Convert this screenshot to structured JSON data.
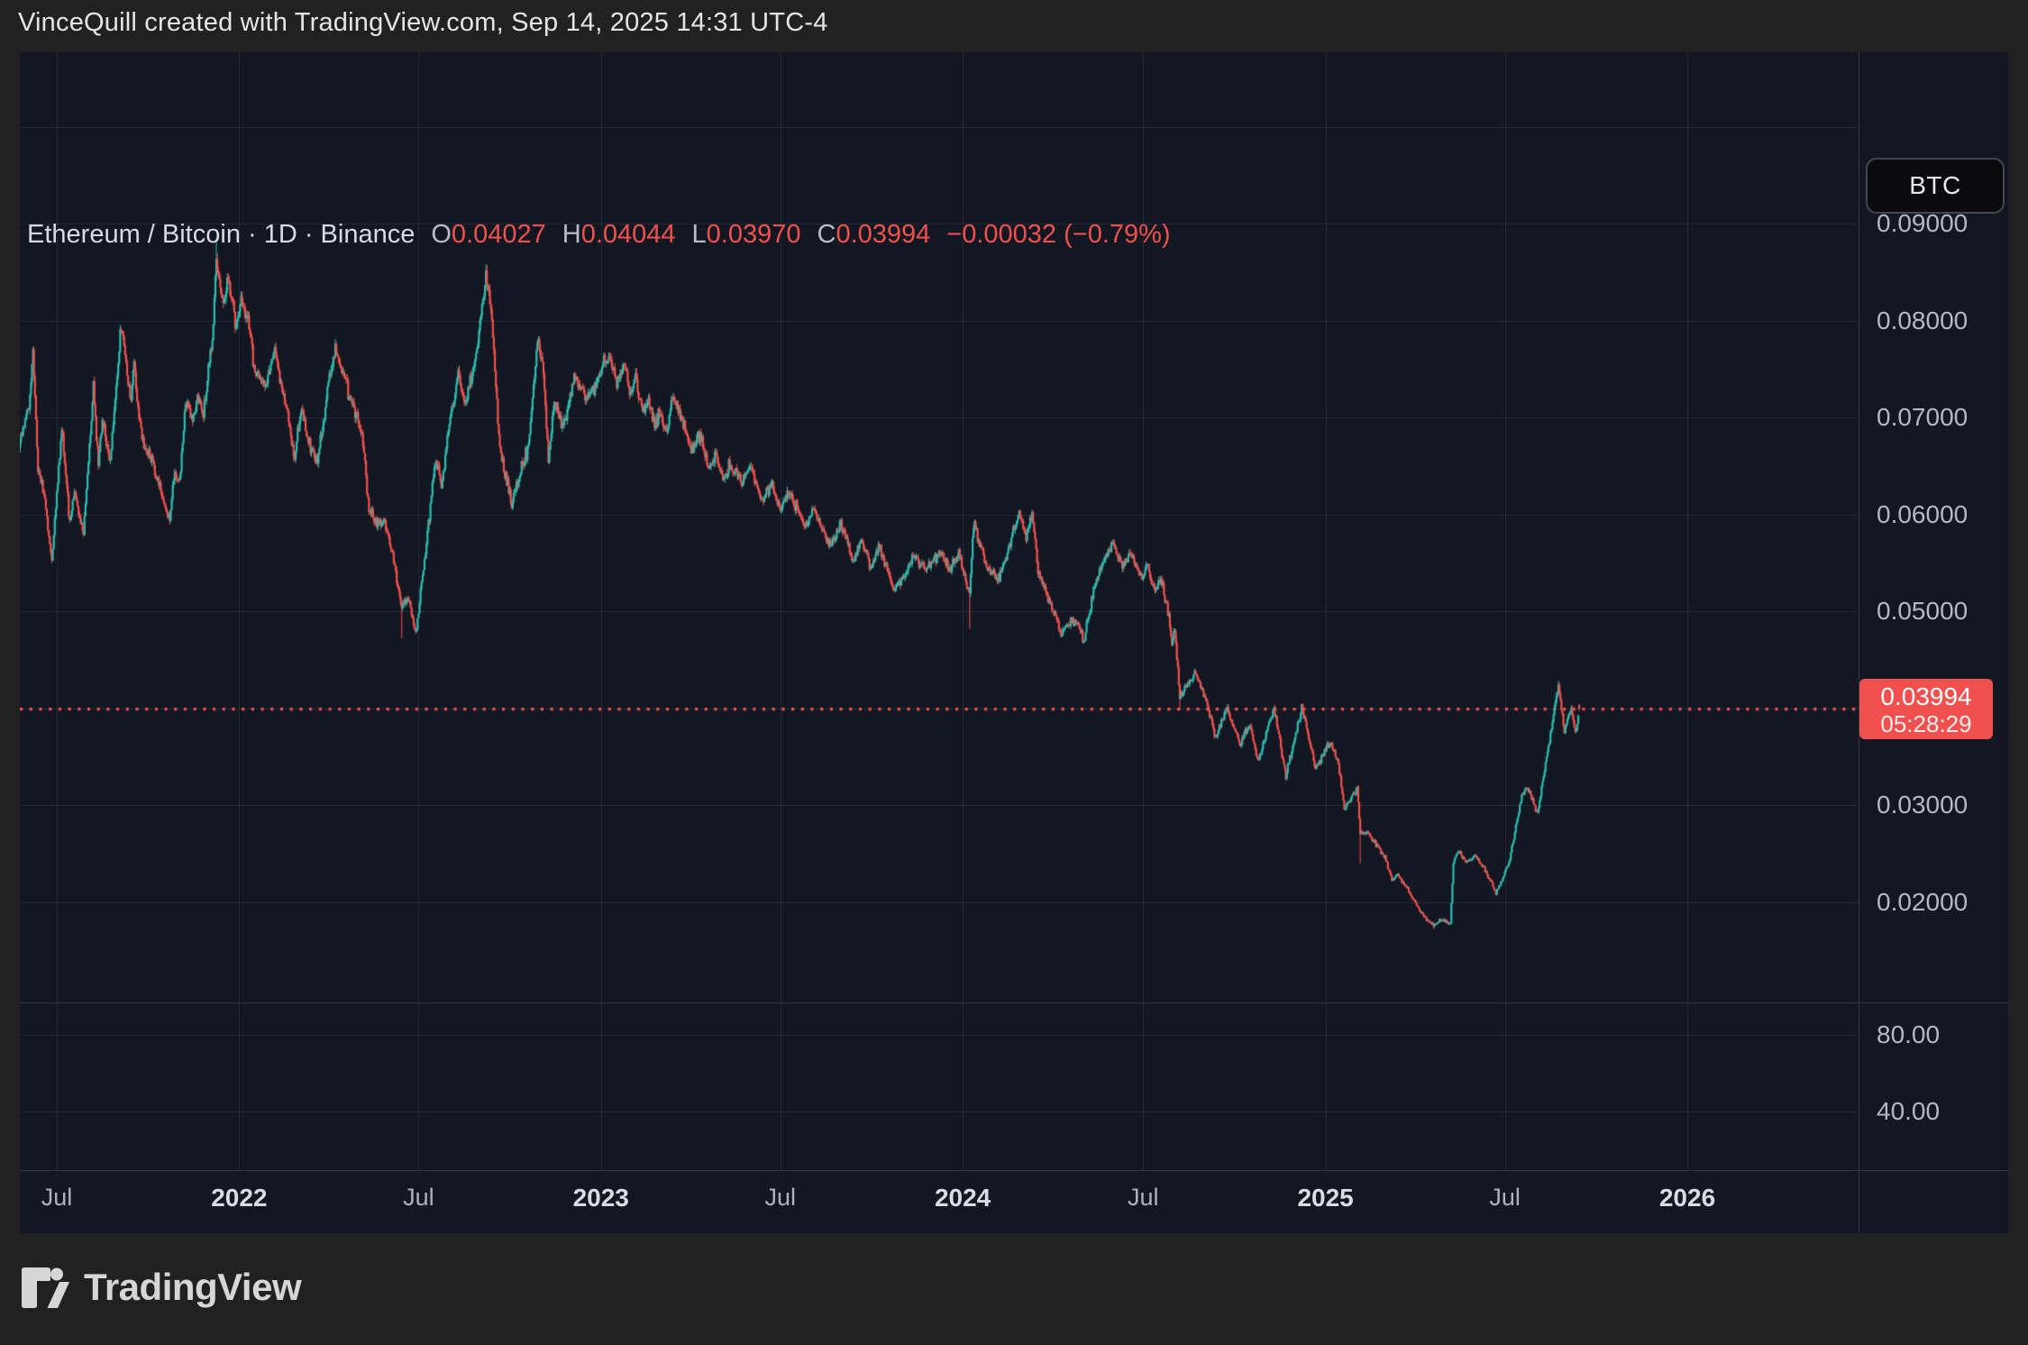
{
  "attribution": "VinceQuill created with TradingView.com, Sep 14, 2025 14:31 UTC-4",
  "legend": {
    "title": "Ethereum / Bitcoin · 1D · Binance",
    "ohlc": [
      {
        "key": "O",
        "value": "0.04027"
      },
      {
        "key": "H",
        "value": "0.04044"
      },
      {
        "key": "L",
        "value": "0.03970"
      },
      {
        "key": "C",
        "value": "0.03994"
      }
    ],
    "change": "−0.00032 (−0.79%)"
  },
  "price_scale": {
    "currency_button": "BTC",
    "ticks": [
      {
        "value": 0.09,
        "label": "0.09000"
      },
      {
        "value": 0.08,
        "label": "0.08000"
      },
      {
        "value": 0.07,
        "label": "0.07000"
      },
      {
        "value": 0.06,
        "label": "0.06000"
      },
      {
        "value": 0.05,
        "label": "0.05000"
      },
      {
        "value": 0.03,
        "label": "0.03000"
      },
      {
        "value": 0.02,
        "label": "0.02000"
      }
    ],
    "lower_pane_ticks": [
      {
        "label": "80.00"
      },
      {
        "label": "40.00"
      }
    ],
    "price_label": {
      "price": "0.03994",
      "countdown": "05:28:29"
    }
  },
  "time_scale": {
    "labels": [
      {
        "date": "2021-07-01",
        "text": "Jul",
        "major": false
      },
      {
        "date": "2022-01-01",
        "text": "2022",
        "major": true
      },
      {
        "date": "2022-07-01",
        "text": "Jul",
        "major": false
      },
      {
        "date": "2023-01-01",
        "text": "2023",
        "major": true
      },
      {
        "date": "2023-07-01",
        "text": "Jul",
        "major": false
      },
      {
        "date": "2024-01-01",
        "text": "2024",
        "major": true
      },
      {
        "date": "2024-07-01",
        "text": "Jul",
        "major": false
      },
      {
        "date": "2025-01-01",
        "text": "2025",
        "major": true
      },
      {
        "date": "2025-07-01",
        "text": "Jul",
        "major": false
      },
      {
        "date": "2026-01-01",
        "text": "2026",
        "major": true
      }
    ]
  },
  "logo_text": "TradingView",
  "colors": {
    "up": "#2ebdb0",
    "down": "#f0524f",
    "accent_red": "#f0514f",
    "chart_bg": "#131722",
    "outer_bg": "#212121",
    "grid": "rgba(240,243,250,0.075)"
  },
  "chart_data": {
    "type": "candlestick",
    "title": "Ethereum / Bitcoin",
    "interval": "1D",
    "exchange": "Binance",
    "quote_unit": "BTC",
    "current_price": 0.03994,
    "current_price_countdown": "05:28:29",
    "last_candle": {
      "date": "2025-09-14",
      "open": 0.04027,
      "high": 0.04044,
      "low": 0.0397,
      "close": 0.03994
    },
    "y_axis": {
      "labeled_ticks": [
        0.09,
        0.08,
        0.07,
        0.06,
        0.05,
        0.03,
        0.02
      ],
      "grid_values": [
        0.1,
        0.09,
        0.08,
        0.07,
        0.06,
        0.05,
        0.04,
        0.03,
        0.02
      ],
      "visible_range": [
        0.01,
        0.1075
      ]
    },
    "lower_pane": {
      "labeled_ticks": [
        80.0,
        40.0
      ],
      "series_visible": false
    },
    "x_axis": {
      "start": "2021-05-20",
      "end": "2026-06-01"
    },
    "keypoints": [
      [
        "2021-05-20",
        0.066
      ],
      [
        "2021-05-28",
        0.0685
      ],
      [
        "2021-06-03",
        0.0712
      ],
      [
        "2021-06-07",
        0.0768
      ],
      [
        "2021-06-12",
        0.0648
      ],
      [
        "2021-06-18",
        0.062
      ],
      [
        "2021-06-26",
        0.0552
      ],
      [
        "2021-07-06",
        0.0688
      ],
      [
        "2021-07-14",
        0.0592
      ],
      [
        "2021-07-19",
        0.0622
      ],
      [
        "2021-07-28",
        0.0578
      ],
      [
        "2021-08-07",
        0.073
      ],
      [
        "2021-08-12",
        0.0652
      ],
      [
        "2021-08-16",
        0.07
      ],
      [
        "2021-08-24",
        0.0655
      ],
      [
        "2021-09-04",
        0.0795
      ],
      [
        "2021-09-14",
        0.0718
      ],
      [
        "2021-09-17",
        0.0757
      ],
      [
        "2021-09-22",
        0.07
      ],
      [
        "2021-09-28",
        0.0668
      ],
      [
        "2021-10-02",
        0.066
      ],
      [
        "2021-10-10",
        0.064
      ],
      [
        "2021-10-18",
        0.0607
      ],
      [
        "2021-10-23",
        0.0594
      ],
      [
        "2021-10-28",
        0.0645
      ],
      [
        "2021-11-02",
        0.0633
      ],
      [
        "2021-11-08",
        0.0716
      ],
      [
        "2021-11-15",
        0.07
      ],
      [
        "2021-11-21",
        0.0722
      ],
      [
        "2021-11-26",
        0.0704
      ],
      [
        "2021-12-05",
        0.0781
      ],
      [
        "2021-12-09",
        0.0862
      ],
      [
        "2021-12-16",
        0.0812
      ],
      [
        "2021-12-21",
        0.0845
      ],
      [
        "2021-12-29",
        0.079
      ],
      [
        "2022-01-03",
        0.0822
      ],
      [
        "2022-01-10",
        0.08
      ],
      [
        "2022-01-17",
        0.0745
      ],
      [
        "2022-01-27",
        0.0734
      ],
      [
        "2022-02-06",
        0.0768
      ],
      [
        "2022-02-13",
        0.0729
      ],
      [
        "2022-02-18",
        0.071
      ],
      [
        "2022-02-25",
        0.0658
      ],
      [
        "2022-03-05",
        0.0708
      ],
      [
        "2022-03-13",
        0.0672
      ],
      [
        "2022-03-21",
        0.0653
      ],
      [
        "2022-03-31",
        0.0728
      ],
      [
        "2022-04-08",
        0.077
      ],
      [
        "2022-04-16",
        0.0745
      ],
      [
        "2022-04-25",
        0.0712
      ],
      [
        "2022-05-05",
        0.0685
      ],
      [
        "2022-05-12",
        0.0605
      ],
      [
        "2022-05-20",
        0.0588
      ],
      [
        "2022-05-27",
        0.0592
      ],
      [
        "2022-06-05",
        0.056
      ],
      [
        "2022-06-14",
        0.0502
      ],
      [
        "2022-06-20",
        0.0515
      ],
      [
        "2022-06-28",
        0.0478
      ],
      [
        "2022-07-08",
        0.056
      ],
      [
        "2022-07-18",
        0.0655
      ],
      [
        "2022-07-24",
        0.063
      ],
      [
        "2022-08-02",
        0.07
      ],
      [
        "2022-08-10",
        0.0742
      ],
      [
        "2022-08-17",
        0.0712
      ],
      [
        "2022-08-27",
        0.076
      ],
      [
        "2022-09-07",
        0.085
      ],
      [
        "2022-09-13",
        0.0802
      ],
      [
        "2022-09-21",
        0.0668
      ],
      [
        "2022-10-03",
        0.0612
      ],
      [
        "2022-10-12",
        0.0645
      ],
      [
        "2022-10-20",
        0.067
      ],
      [
        "2022-10-29",
        0.0782
      ],
      [
        "2022-11-04",
        0.0745
      ],
      [
        "2022-11-09",
        0.0655
      ],
      [
        "2022-11-15",
        0.0718
      ],
      [
        "2022-11-24",
        0.069
      ],
      [
        "2022-12-05",
        0.0742
      ],
      [
        "2022-12-20",
        0.0718
      ],
      [
        "2023-01-08",
        0.0766
      ],
      [
        "2023-01-17",
        0.0732
      ],
      [
        "2023-01-24",
        0.0755
      ],
      [
        "2023-02-01",
        0.0722
      ],
      [
        "2023-02-05",
        0.074
      ],
      [
        "2023-02-12",
        0.0705
      ],
      [
        "2023-02-17",
        0.0718
      ],
      [
        "2023-02-24",
        0.0693
      ],
      [
        "2023-03-02",
        0.0706
      ],
      [
        "2023-03-08",
        0.0683
      ],
      [
        "2023-03-14",
        0.072
      ],
      [
        "2023-03-24",
        0.07
      ],
      [
        "2023-04-02",
        0.0664
      ],
      [
        "2023-04-11",
        0.0683
      ],
      [
        "2023-04-20",
        0.0648
      ],
      [
        "2023-04-26",
        0.0661
      ],
      [
        "2023-05-05",
        0.0636
      ],
      [
        "2023-05-11",
        0.0652
      ],
      [
        "2023-05-23",
        0.0632
      ],
      [
        "2023-06-01",
        0.0648
      ],
      [
        "2023-06-13",
        0.0614
      ],
      [
        "2023-06-22",
        0.0632
      ],
      [
        "2023-07-01",
        0.0605
      ],
      [
        "2023-07-10",
        0.0623
      ],
      [
        "2023-07-25",
        0.0589
      ],
      [
        "2023-08-03",
        0.0605
      ],
      [
        "2023-08-19",
        0.0567
      ],
      [
        "2023-08-31",
        0.0589
      ],
      [
        "2023-09-12",
        0.0555
      ],
      [
        "2023-09-21",
        0.0571
      ],
      [
        "2023-09-30",
        0.0546
      ],
      [
        "2023-10-09",
        0.0567
      ],
      [
        "2023-10-18",
        0.0537
      ],
      [
        "2023-10-23",
        0.0522
      ],
      [
        "2023-11-02",
        0.0535
      ],
      [
        "2023-11-12",
        0.0558
      ],
      [
        "2023-11-24",
        0.0542
      ],
      [
        "2023-12-08",
        0.056
      ],
      [
        "2023-12-20",
        0.0545
      ],
      [
        "2023-12-28",
        0.056
      ],
      [
        "2024-01-08",
        0.052
      ],
      [
        "2024-01-12",
        0.0592
      ],
      [
        "2024-01-20",
        0.0565
      ],
      [
        "2024-01-25",
        0.0546
      ],
      [
        "2024-02-06",
        0.0532
      ],
      [
        "2024-02-15",
        0.0558
      ],
      [
        "2024-02-26",
        0.0604
      ],
      [
        "2024-03-05",
        0.0577
      ],
      [
        "2024-03-11",
        0.06
      ],
      [
        "2024-03-17",
        0.054
      ],
      [
        "2024-03-28",
        0.0513
      ],
      [
        "2024-04-09",
        0.0477
      ],
      [
        "2024-04-18",
        0.049
      ],
      [
        "2024-04-26",
        0.0487
      ],
      [
        "2024-05-02",
        0.047
      ],
      [
        "2024-05-13",
        0.0526
      ],
      [
        "2024-05-25",
        0.0561
      ],
      [
        "2024-05-31",
        0.057
      ],
      [
        "2024-06-09",
        0.0549
      ],
      [
        "2024-06-18",
        0.0561
      ],
      [
        "2024-06-29",
        0.0534
      ],
      [
        "2024-07-05",
        0.0546
      ],
      [
        "2024-07-13",
        0.0522
      ],
      [
        "2024-07-19",
        0.0534
      ],
      [
        "2024-07-27",
        0.0497
      ],
      [
        "2024-07-30",
        0.0466
      ],
      [
        "2024-08-02",
        0.0481
      ],
      [
        "2024-08-07",
        0.0412
      ],
      [
        "2024-08-22",
        0.0437
      ],
      [
        "2024-09-02",
        0.041
      ],
      [
        "2024-09-12",
        0.0368
      ],
      [
        "2024-09-23",
        0.04
      ],
      [
        "2024-10-07",
        0.0362
      ],
      [
        "2024-10-16",
        0.0384
      ],
      [
        "2024-10-25",
        0.0345
      ],
      [
        "2024-11-10",
        0.0401
      ],
      [
        "2024-11-22",
        0.033
      ],
      [
        "2024-12-08",
        0.04
      ],
      [
        "2024-12-22",
        0.0337
      ],
      [
        "2025-01-05",
        0.0365
      ],
      [
        "2025-01-14",
        0.0343
      ],
      [
        "2025-01-20",
        0.0295
      ],
      [
        "2025-02-02",
        0.0318
      ],
      [
        "2025-02-05",
        0.027
      ],
      [
        "2025-02-12",
        0.0272
      ],
      [
        "2025-02-22",
        0.0258
      ],
      [
        "2025-03-02",
        0.0246
      ],
      [
        "2025-03-09",
        0.0222
      ],
      [
        "2025-03-14",
        0.0228
      ],
      [
        "2025-03-24",
        0.0215
      ],
      [
        "2025-04-05",
        0.0192
      ],
      [
        "2025-04-12",
        0.0183
      ],
      [
        "2025-04-20",
        0.0176
      ],
      [
        "2025-04-28",
        0.0182
      ],
      [
        "2025-05-07",
        0.0177
      ],
      [
        "2025-05-10",
        0.024
      ],
      [
        "2025-05-15",
        0.0253
      ],
      [
        "2025-05-22",
        0.0242
      ],
      [
        "2025-06-01",
        0.0247
      ],
      [
        "2025-06-10",
        0.0235
      ],
      [
        "2025-06-22",
        0.0209
      ],
      [
        "2025-07-05",
        0.024
      ],
      [
        "2025-07-18",
        0.031
      ],
      [
        "2025-07-23",
        0.0319
      ],
      [
        "2025-08-03",
        0.0291
      ],
      [
        "2025-08-14",
        0.0362
      ],
      [
        "2025-08-24",
        0.0424
      ],
      [
        "2025-08-30",
        0.0377
      ],
      [
        "2025-09-06",
        0.04
      ],
      [
        "2025-09-10",
        0.0374
      ],
      [
        "2025-09-14",
        0.0399
      ]
    ],
    "wick_events": [
      {
        "date": "2021-12-09",
        "high": 0.0885
      },
      {
        "date": "2022-06-14",
        "low": 0.0472
      },
      {
        "date": "2022-09-07",
        "high": 0.0858
      },
      {
        "date": "2024-01-08",
        "low": 0.0482
      },
      {
        "date": "2024-08-07",
        "low": 0.0398
      },
      {
        "date": "2025-02-05",
        "low": 0.024
      },
      {
        "date": "2025-04-20",
        "low": 0.0172
      },
      {
        "date": "2025-08-24",
        "high": 0.0428
      }
    ]
  }
}
